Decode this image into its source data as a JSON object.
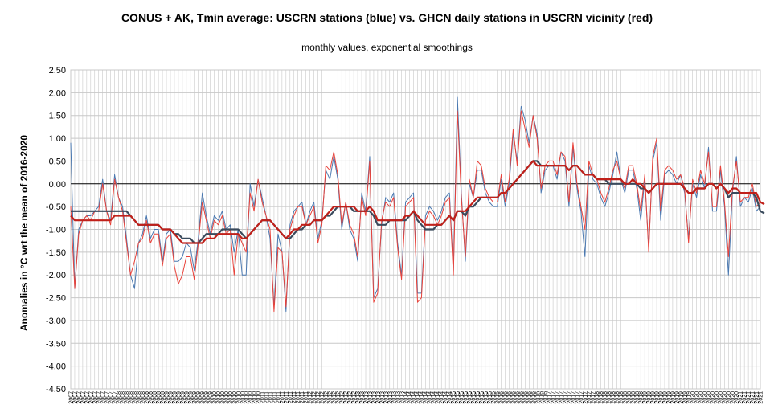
{
  "chart_data": {
    "type": "line",
    "title": "CONUS + AK, Tmin average: USCRN stations (blue) vs. GHCN daily stations in USCRN vicinity (red)",
    "subtitle": "monthly values, exponential smoothings",
    "ylabel": "Anomalies in °C wrt the mean of 2016-2020",
    "xlabel": "",
    "ylim": [
      -4.5,
      2.5
    ],
    "yticks": [
      "2.50",
      "2.00",
      "1.50",
      "1.00",
      "0.50",
      "0.00",
      "-0.50",
      "-1.00",
      "-1.50",
      "-2.00",
      "-2.50",
      "-3.00",
      "-3.50",
      "-4.00",
      "-4.50"
    ],
    "grid": true,
    "legend": "none",
    "x_start_year": 2007,
    "x_start_month": 1,
    "n_months": 174,
    "colors": {
      "uscrn_monthly": "#4a78b0",
      "ghcn_monthly": "#e8423a",
      "uscrn_smooth": "#3a4a5c",
      "ghcn_smooth": "#c0201a",
      "zero_line": "#000000",
      "grid": "#c8c8c8"
    },
    "series": [
      {
        "role": "uscrn_monthly",
        "values": [
          0.9,
          -2.3,
          -1.0,
          -0.8,
          -0.7,
          -0.7,
          -0.6,
          -0.5,
          0.1,
          -0.6,
          -0.8,
          0.2,
          -0.3,
          -0.5,
          -1.2,
          -2.0,
          -2.3,
          -1.3,
          -1.1,
          -0.7,
          -1.2,
          -1.0,
          -1.0,
          -1.7,
          -1.1,
          -1.0,
          -1.7,
          -1.7,
          -1.6,
          -1.3,
          -1.4,
          -1.9,
          -1.2,
          -0.2,
          -0.7,
          -1.1,
          -0.7,
          -0.8,
          -0.6,
          -1.0,
          -0.9,
          -1.5,
          -1.0,
          -2.0,
          -2.0,
          0.0,
          -0.5,
          0.1,
          -0.3,
          -0.7,
          -1.2,
          -2.7,
          -1.1,
          -1.5,
          -2.8,
          -0.9,
          -0.6,
          -0.5,
          -0.4,
          -0.9,
          -0.6,
          -0.4,
          -1.2,
          -0.8,
          0.3,
          0.1,
          0.6,
          0.1,
          -1.0,
          -0.4,
          -1.0,
          -1.2,
          -1.7,
          -0.2,
          -0.6,
          0.6,
          -2.5,
          -2.3,
          -0.9,
          -0.3,
          -0.4,
          -0.2,
          -1.3,
          -2.0,
          -0.4,
          -0.3,
          -0.2,
          -2.4,
          -2.4,
          -0.7,
          -0.5,
          -0.6,
          -0.8,
          -0.6,
          -0.3,
          -0.2,
          -1.9,
          1.9,
          -0.2,
          -1.7,
          0.0,
          -0.3,
          0.3,
          0.3,
          -0.2,
          -0.4,
          -0.5,
          -0.5,
          0.1,
          -0.5,
          0.0,
          1.1,
          0.5,
          1.7,
          1.4,
          0.9,
          1.5,
          1.1,
          -0.2,
          0.3,
          0.4,
          0.4,
          0.1,
          0.7,
          0.5,
          -0.5,
          0.8,
          -0.1,
          -0.6,
          -1.6,
          0.4,
          0.1,
          0.0,
          -0.3,
          -0.5,
          -0.2,
          0.2,
          0.7,
          0.1,
          -0.2,
          0.3,
          0.3,
          -0.1,
          -0.8,
          0.1,
          -1.4,
          0.5,
          0.9,
          -0.8,
          0.2,
          0.3,
          0.2,
          0.0,
          0.2,
          -0.2,
          -1.2,
          0.0,
          -0.3,
          0.2,
          -0.1,
          0.8,
          -0.6,
          -0.6,
          0.3,
          -0.5,
          -2.0,
          -0.2,
          0.6,
          -0.5,
          -0.3,
          -0.4,
          -0.1,
          -0.6,
          -0.5
        ]
      },
      {
        "role": "ghcn_monthly",
        "values": [
          -0.5,
          -2.3,
          -1.1,
          -0.8,
          -0.7,
          -0.8,
          -0.6,
          -0.6,
          0.0,
          -0.6,
          -0.9,
          0.1,
          -0.3,
          -0.6,
          -1.3,
          -2.0,
          -1.7,
          -1.3,
          -1.2,
          -0.8,
          -1.3,
          -1.1,
          -1.1,
          -1.8,
          -1.2,
          -1.1,
          -1.8,
          -2.2,
          -2.0,
          -1.6,
          -1.6,
          -2.1,
          -1.3,
          -0.4,
          -0.8,
          -1.2,
          -0.8,
          -0.9,
          -0.7,
          -1.1,
          -1.0,
          -2.0,
          -1.1,
          -1.3,
          -1.5,
          -0.2,
          -0.6,
          0.1,
          -0.4,
          -0.7,
          -1.0,
          -2.8,
          -1.4,
          -1.5,
          -2.7,
          -1.0,
          -0.7,
          -0.5,
          -0.5,
          -0.9,
          -0.7,
          -0.5,
          -1.3,
          -0.9,
          0.4,
          0.3,
          0.7,
          0.2,
          -0.9,
          -0.4,
          -0.9,
          -1.1,
          -1.6,
          -0.3,
          -0.7,
          0.5,
          -2.6,
          -2.4,
          -0.8,
          -0.4,
          -0.5,
          -0.3,
          -1.4,
          -2.1,
          -0.5,
          -0.4,
          -0.3,
          -2.6,
          -2.5,
          -0.8,
          -0.6,
          -0.7,
          -0.9,
          -0.7,
          -0.4,
          -0.3,
          -2.0,
          1.6,
          -0.3,
          -1.6,
          0.1,
          -0.3,
          0.5,
          0.4,
          -0.1,
          -0.3,
          -0.4,
          -0.4,
          0.2,
          -0.4,
          0.1,
          1.2,
          0.4,
          1.6,
          1.2,
          0.8,
          1.5,
          1.0,
          -0.1,
          0.4,
          0.5,
          0.5,
          0.2,
          0.7,
          0.6,
          -0.4,
          0.9,
          0.0,
          -0.5,
          -1.0,
          0.5,
          0.2,
          0.1,
          -0.2,
          -0.4,
          -0.1,
          0.3,
          0.5,
          0.1,
          -0.1,
          0.4,
          0.4,
          0.0,
          -0.6,
          0.2,
          -1.5,
          0.6,
          1.0,
          -0.6,
          0.3,
          0.4,
          0.3,
          0.1,
          0.2,
          -0.1,
          -1.3,
          0.1,
          -0.2,
          0.3,
          0.0,
          0.7,
          -0.5,
          -0.5,
          0.4,
          -0.4,
          -1.6,
          -0.1,
          0.5,
          -0.4,
          -0.3,
          -0.3,
          0.0,
          -0.5,
          -0.4
        ]
      },
      {
        "role": "uscrn_smooth",
        "values": [
          -0.6,
          -0.6,
          -0.6,
          -0.6,
          -0.6,
          -0.6,
          -0.6,
          -0.6,
          -0.6,
          -0.6,
          -0.6,
          -0.6,
          -0.6,
          -0.6,
          -0.6,
          -0.7,
          -0.8,
          -0.9,
          -0.9,
          -0.9,
          -0.9,
          -0.9,
          -0.9,
          -1.0,
          -1.0,
          -1.0,
          -1.1,
          -1.1,
          -1.2,
          -1.2,
          -1.2,
          -1.3,
          -1.3,
          -1.2,
          -1.1,
          -1.1,
          -1.1,
          -1.1,
          -1.0,
          -1.0,
          -1.0,
          -1.0,
          -1.0,
          -1.1,
          -1.2,
          -1.1,
          -1.0,
          -0.9,
          -0.8,
          -0.8,
          -0.8,
          -0.9,
          -1.0,
          -1.1,
          -1.2,
          -1.2,
          -1.1,
          -1.0,
          -1.0,
          -0.9,
          -0.9,
          -0.8,
          -0.8,
          -0.8,
          -0.7,
          -0.7,
          -0.6,
          -0.5,
          -0.5,
          -0.5,
          -0.5,
          -0.6,
          -0.6,
          -0.6,
          -0.6,
          -0.6,
          -0.7,
          -0.9,
          -0.9,
          -0.9,
          -0.8,
          -0.8,
          -0.8,
          -0.8,
          -0.8,
          -0.7,
          -0.6,
          -0.8,
          -0.9,
          -1.0,
          -1.0,
          -1.0,
          -0.9,
          -0.9,
          -0.8,
          -0.7,
          -0.8,
          -0.6,
          -0.6,
          -0.7,
          -0.5,
          -0.5,
          -0.4,
          -0.3,
          -0.3,
          -0.3,
          -0.3,
          -0.3,
          -0.2,
          -0.2,
          -0.1,
          0.0,
          0.1,
          0.2,
          0.3,
          0.4,
          0.5,
          0.5,
          0.4,
          0.4,
          0.4,
          0.4,
          0.4,
          0.4,
          0.4,
          0.3,
          0.4,
          0.4,
          0.3,
          0.2,
          0.2,
          0.2,
          0.1,
          0.1,
          0.1,
          0.0,
          0.0,
          0.0,
          0.0,
          0.0,
          0.0,
          0.0,
          0.0,
          -0.1,
          -0.1,
          -0.2,
          -0.1,
          0.0,
          0.0,
          0.0,
          0.0,
          0.0,
          0.0,
          0.0,
          -0.1,
          -0.2,
          -0.2,
          -0.1,
          -0.1,
          -0.1,
          0.0,
          0.0,
          -0.1,
          0.0,
          -0.1,
          -0.3,
          -0.2,
          -0.2,
          -0.2,
          -0.2,
          -0.2,
          -0.2,
          -0.3,
          -0.6,
          -0.65
        ]
      },
      {
        "role": "ghcn_smooth",
        "values": [
          -0.7,
          -0.8,
          -0.8,
          -0.8,
          -0.8,
          -0.8,
          -0.8,
          -0.8,
          -0.8,
          -0.8,
          -0.8,
          -0.7,
          -0.7,
          -0.7,
          -0.7,
          -0.7,
          -0.8,
          -0.9,
          -0.9,
          -0.9,
          -0.9,
          -0.9,
          -0.9,
          -1.0,
          -1.0,
          -1.0,
          -1.1,
          -1.2,
          -1.3,
          -1.3,
          -1.3,
          -1.3,
          -1.3,
          -1.3,
          -1.2,
          -1.2,
          -1.2,
          -1.1,
          -1.1,
          -1.1,
          -1.1,
          -1.1,
          -1.1,
          -1.2,
          -1.2,
          -1.1,
          -1.0,
          -0.9,
          -0.8,
          -0.8,
          -0.8,
          -0.9,
          -1.0,
          -1.1,
          -1.2,
          -1.1,
          -1.0,
          -1.0,
          -0.9,
          -0.9,
          -0.9,
          -0.8,
          -0.8,
          -0.8,
          -0.7,
          -0.6,
          -0.5,
          -0.5,
          -0.5,
          -0.5,
          -0.5,
          -0.5,
          -0.6,
          -0.6,
          -0.6,
          -0.5,
          -0.6,
          -0.8,
          -0.8,
          -0.8,
          -0.8,
          -0.8,
          -0.8,
          -0.8,
          -0.7,
          -0.7,
          -0.6,
          -0.7,
          -0.8,
          -0.9,
          -0.9,
          -0.9,
          -0.9,
          -0.9,
          -0.8,
          -0.7,
          -0.8,
          -0.6,
          -0.6,
          -0.6,
          -0.5,
          -0.4,
          -0.3,
          -0.3,
          -0.3,
          -0.3,
          -0.3,
          -0.3,
          -0.2,
          -0.2,
          -0.1,
          0.0,
          0.1,
          0.2,
          0.3,
          0.4,
          0.5,
          0.4,
          0.4,
          0.4,
          0.4,
          0.4,
          0.4,
          0.4,
          0.4,
          0.3,
          0.4,
          0.4,
          0.3,
          0.2,
          0.2,
          0.2,
          0.1,
          0.1,
          0.1,
          0.1,
          0.1,
          0.1,
          0.1,
          0.0,
          0.0,
          0.1,
          0.0,
          0.0,
          -0.1,
          -0.2,
          -0.1,
          0.0,
          0.0,
          0.0,
          0.0,
          0.0,
          0.0,
          0.0,
          -0.1,
          -0.2,
          -0.2,
          -0.1,
          -0.1,
          -0.1,
          0.0,
          0.0,
          -0.1,
          0.0,
          -0.1,
          -0.2,
          -0.1,
          -0.1,
          -0.2,
          -0.2,
          -0.2,
          -0.2,
          -0.2,
          -0.4,
          -0.45
        ]
      }
    ]
  }
}
